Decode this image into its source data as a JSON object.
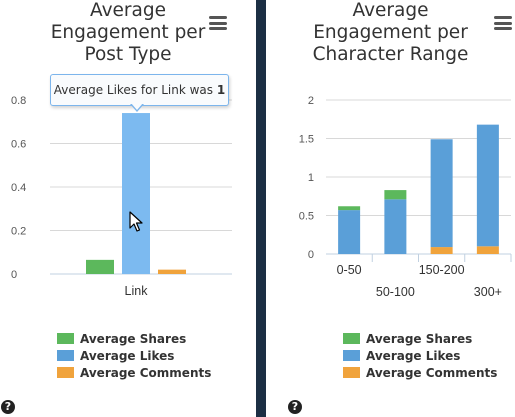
{
  "colors": {
    "shares": "#5cb85c",
    "likes": "#5a9fd8",
    "likes_hover": "#7cbaf0",
    "comments": "#f0a33c",
    "divider": "#1c2f44"
  },
  "left": {
    "title_lines": [
      "Average",
      "Engagement per",
      "Post Type"
    ],
    "menu_icon": "hamburger-menu-icon",
    "tooltip": {
      "prefix": "Average Likes for Link was ",
      "value": "1"
    },
    "legend": [
      "Average Shares",
      "Average Likes",
      "Average Comments"
    ],
    "help_icon": "?"
  },
  "right": {
    "title_lines": [
      "Average",
      "Engagement per",
      "Character Range"
    ],
    "menu_icon": "hamburger-menu-icon",
    "legend": [
      "Average Shares",
      "Average Likes",
      "Average Comments"
    ],
    "help_icon": "?"
  },
  "chart_data": [
    {
      "type": "bar",
      "title": "Average Engagement per Post Type",
      "categories": [
        "Link"
      ],
      "yticks": [
        "0",
        "0.2",
        "0.4",
        "0.6",
        "0.8"
      ],
      "ylim": [
        0,
        0.8
      ],
      "grid": true,
      "legend_position": "bottom",
      "series": [
        {
          "name": "Average Shares",
          "values": [
            0.065
          ]
        },
        {
          "name": "Average Likes",
          "values": [
            0.74
          ]
        },
        {
          "name": "Average Comments",
          "values": [
            0.02
          ]
        }
      ]
    },
    {
      "type": "bar",
      "stacked": true,
      "title": "Average Engagement per Character Range",
      "categories": [
        "0-50",
        "50-100",
        "150-200",
        "300+"
      ],
      "yticks": [
        "0",
        "0.5",
        "1",
        "1.5",
        "2"
      ],
      "ylim": [
        0,
        2
      ],
      "grid": true,
      "legend_position": "bottom",
      "series": [
        {
          "name": "Average Shares",
          "values": [
            0.05,
            0.12,
            0.0,
            0.0
          ]
        },
        {
          "name": "Average Likes",
          "values": [
            0.57,
            0.71,
            1.4,
            1.58
          ]
        },
        {
          "name": "Average Comments",
          "values": [
            0.0,
            0.0,
            0.09,
            0.1
          ]
        }
      ]
    }
  ]
}
